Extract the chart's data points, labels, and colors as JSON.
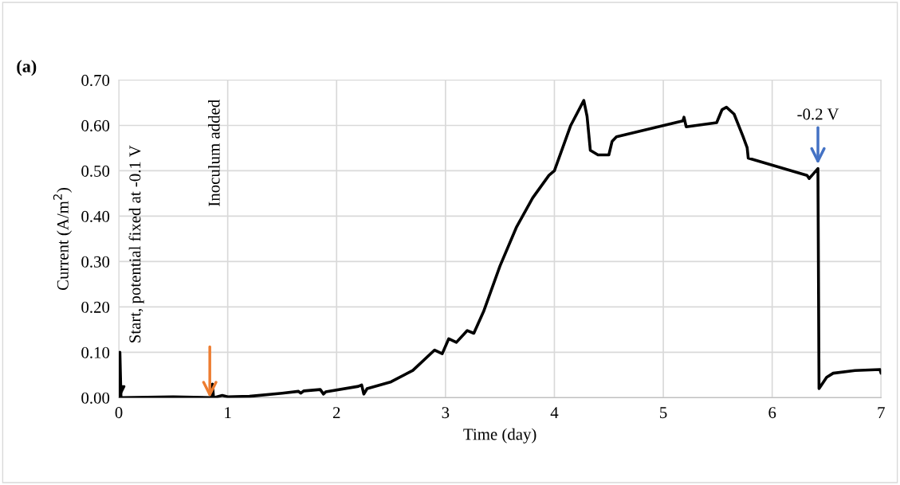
{
  "chart_data": {
    "type": "line",
    "xlabel": "Time (day)",
    "ylabel": "Current (A/m$^{2}$)",
    "xlim": [
      0,
      7
    ],
    "xticks": [
      0,
      1,
      2,
      3,
      4,
      5,
      6,
      7
    ],
    "ylim": [
      0,
      0.7
    ],
    "yticks": [
      {
        "value": 0,
        "label": "0.00"
      },
      {
        "value": 0.1,
        "label": "0.10"
      },
      {
        "value": 0.2,
        "label": "0.20"
      },
      {
        "value": 0.3,
        "label": "0.30"
      },
      {
        "value": 0.4,
        "label": "0.40"
      },
      {
        "value": 0.5,
        "label": "0.50"
      },
      {
        "value": 0.6,
        "label": "0.60"
      },
      {
        "value": 0.7,
        "label": "0.70"
      }
    ],
    "grid": true,
    "marker": "none",
    "line_style": "solid",
    "legend": false,
    "series": [
      {
        "color": "#000000",
        "x": [
          0,
          0.01,
          0.02,
          0.5,
          0.85,
          0.86,
          0.87,
          0.95,
          1.0,
          1.2,
          1.5,
          1.65,
          1.67,
          1.7,
          1.85,
          1.88,
          1.9,
          2.2,
          2.23,
          2.25,
          2.28,
          2.5,
          2.7,
          2.9,
          2.97,
          3.03,
          3.1,
          3.2,
          3.26,
          3.35,
          3.5,
          3.65,
          3.8,
          3.95,
          4.0,
          4.15,
          4.27,
          4.3,
          4.33,
          4.4,
          4.5,
          4.53,
          4.57,
          5.18,
          5.19,
          5.21,
          5.49,
          5.54,
          5.58,
          5.65,
          5.73,
          5.77,
          5.78,
          6.32,
          6.34,
          6.42,
          6.43,
          6.5,
          6.56,
          6.76,
          6.99,
          7.0
        ],
        "values": [
          0.0,
          0.1,
          0.0,
          0.002,
          0.0,
          0.03,
          0.0,
          0.005,
          0.002,
          0.003,
          0.01,
          0.014,
          0.01,
          0.015,
          0.018,
          0.008,
          0.013,
          0.025,
          0.028,
          0.008,
          0.02,
          0.035,
          0.06,
          0.105,
          0.097,
          0.13,
          0.122,
          0.148,
          0.142,
          0.19,
          0.29,
          0.375,
          0.44,
          0.49,
          0.5,
          0.6,
          0.655,
          0.62,
          0.545,
          0.535,
          0.535,
          0.565,
          0.575,
          0.61,
          0.618,
          0.597,
          0.606,
          0.635,
          0.64,
          0.625,
          0.577,
          0.551,
          0.528,
          0.49,
          0.483,
          0.505,
          0.02,
          0.045,
          0.054,
          0.06,
          0.062,
          0.054
        ]
      }
    ],
    "annotations": [
      "(a)",
      {
        "text": "Start, potential fixed at -0.1 V",
        "x": 0.01,
        "y": 0.1
      },
      "Inoculum added",
      {
        "text": "-0.2 V",
        "x": 6.42,
        "y": 0.505
      }
    ]
  }
}
